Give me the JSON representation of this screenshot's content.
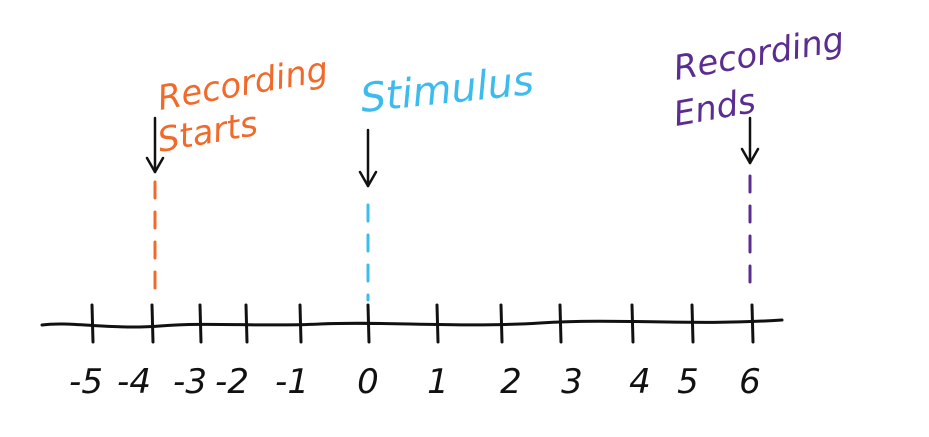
{
  "timeline": {
    "ticks": [
      "-5",
      "-4",
      "-3",
      "-2",
      "-1",
      "0",
      "1",
      "2",
      "3",
      "4",
      "5",
      "6"
    ]
  },
  "events": [
    {
      "id": "recording-start",
      "line1": "Recording",
      "line2": "Starts",
      "at": -4,
      "color": "#f26a2a"
    },
    {
      "id": "stimulus",
      "line1": "Stimulus",
      "line2": "",
      "at": 0,
      "color": "#3cbcee"
    },
    {
      "id": "recording-end",
      "line1": "Recording",
      "line2": "Ends",
      "at": 6,
      "color": "#5b2d90"
    }
  ]
}
